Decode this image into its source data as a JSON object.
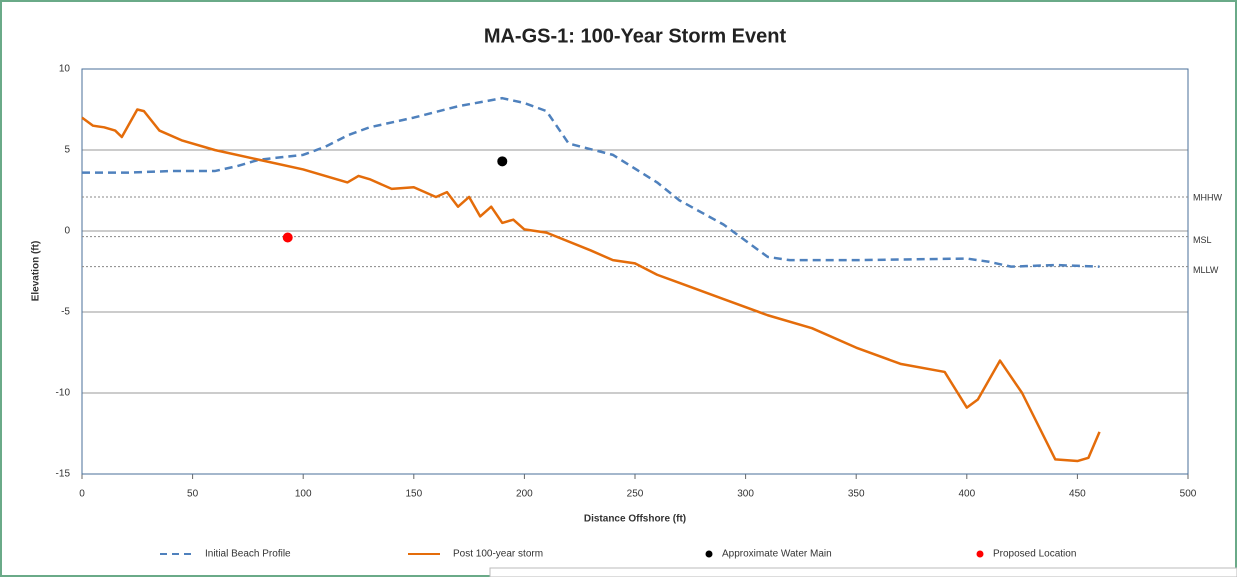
{
  "chart_data": {
    "type": "line",
    "title": "MA-GS-1: 100-Year Storm Event",
    "x_label": "Distance Offshore (ft)",
    "y_label": "Elevation (ft)",
    "xlim": [
      0,
      500
    ],
    "xticks": [
      0,
      50,
      100,
      150,
      200,
      250,
      300,
      350,
      400,
      450,
      500
    ],
    "ylim": [
      -15,
      10
    ],
    "yticks": [
      -15,
      -10,
      -5,
      0,
      5,
      10
    ],
    "grid": true,
    "legend": "bottom",
    "reference_lines": [
      {
        "label": "MHHW",
        "value": 2.1
      },
      {
        "label": "MSL",
        "value": -0.35
      },
      {
        "label": "MLLW",
        "value": -2.2
      }
    ],
    "series": [
      {
        "name": "Initial Beach Profile",
        "color": "#4f81bd",
        "style": "dashed",
        "x": [
          0,
          20,
          40,
          60,
          70,
          80,
          100,
          110,
          120,
          130,
          150,
          170,
          190,
          200,
          210,
          220,
          240,
          260,
          270,
          290,
          300,
          310,
          320,
          350,
          400,
          410,
          420,
          440,
          460
        ],
        "values": [
          3.6,
          3.6,
          3.7,
          3.7,
          4.0,
          4.4,
          4.7,
          5.2,
          5.9,
          6.4,
          7.0,
          7.7,
          8.2,
          7.9,
          7.4,
          5.4,
          4.7,
          3.0,
          1.9,
          0.4,
          -0.6,
          -1.6,
          -1.8,
          -1.8,
          -1.7,
          -1.9,
          -2.2,
          -2.1,
          -2.2
        ]
      },
      {
        "name": "Post 100-year storm",
        "color": "#e46c0a",
        "style": "solid",
        "x": [
          0,
          5,
          10,
          15,
          18,
          25,
          28,
          35,
          45,
          60,
          80,
          100,
          110,
          120,
          125,
          130,
          140,
          150,
          160,
          165,
          170,
          175,
          180,
          185,
          190,
          195,
          200,
          210,
          230,
          240,
          250,
          260,
          270,
          290,
          310,
          330,
          350,
          370,
          390,
          400,
          405,
          415,
          425,
          440,
          450,
          455,
          460
        ],
        "values": [
          7.0,
          6.5,
          6.4,
          6.2,
          5.8,
          7.5,
          7.4,
          6.2,
          5.6,
          5.0,
          4.4,
          3.8,
          3.4,
          3.0,
          3.4,
          3.2,
          2.6,
          2.7,
          2.1,
          2.4,
          1.5,
          2.1,
          0.9,
          1.5,
          0.5,
          0.7,
          0.1,
          -0.1,
          -1.2,
          -1.8,
          -2.0,
          -2.7,
          -3.2,
          -4.2,
          -5.2,
          -6.0,
          -7.2,
          -8.2,
          -8.7,
          -10.9,
          -10.4,
          -8.0,
          -10.0,
          -14.1,
          -14.2,
          -14.0,
          -12.4
        ]
      },
      {
        "name": "Approximate Water Main",
        "color": "#000000",
        "style": "marker",
        "x": [
          190
        ],
        "values": [
          4.3
        ]
      },
      {
        "name": "Proposed Location",
        "color": "#ff0000",
        "style": "marker",
        "x": [
          93
        ],
        "values": [
          -0.4
        ]
      }
    ]
  }
}
